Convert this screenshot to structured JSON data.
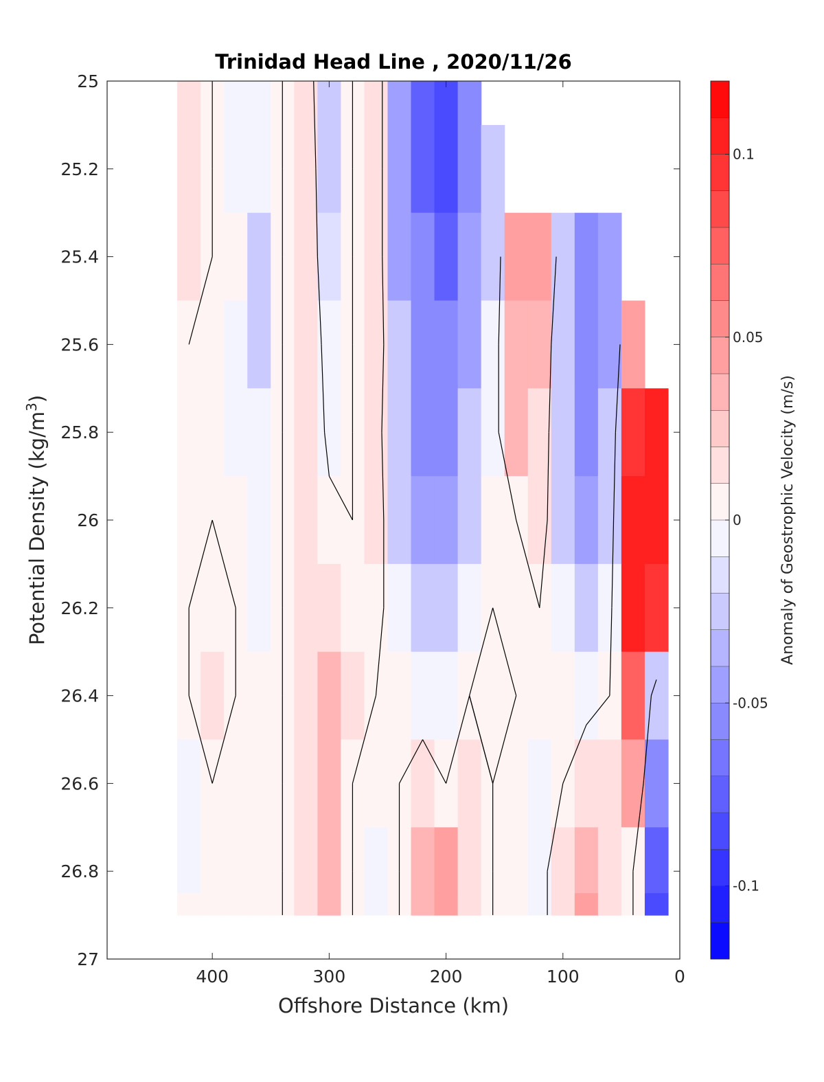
{
  "chart_data": {
    "type": "heatmap",
    "title": "Trinidad Head Line , 2020/11/26",
    "xlabel": "Offshore Distance (km)",
    "ylabel_main": "Potential Density (kg/m",
    "ylabel_sup": "3",
    "ylabel_close": ")",
    "colorbar_label": "Anomaly of Geostrophic Velocity (m/s)",
    "xlim": [
      490,
      0
    ],
    "ylim": [
      25,
      27
    ],
    "x_reversed": true,
    "y_reversed": true,
    "x_ticks": [
      400,
      300,
      200,
      100,
      0
    ],
    "x_tick_labels": [
      "400",
      "300",
      "200",
      "100",
      "0"
    ],
    "y_ticks": [
      25,
      25.2,
      25.4,
      25.6,
      25.8,
      26,
      26.2,
      26.4,
      26.6,
      26.8,
      27
    ],
    "y_tick_labels": [
      "25",
      "25.2",
      "25.4",
      "25.6",
      "25.8",
      "26",
      "26.2",
      "26.4",
      "26.6",
      "26.8",
      "27"
    ],
    "clim": [
      -0.12,
      0.12
    ],
    "colorbar_ticks": [
      0.1,
      0.05,
      0,
      -0.05,
      -0.1
    ],
    "colorbar_tick_labels": [
      "0.1",
      "0.05",
      "0",
      "-0.05",
      "-0.1"
    ],
    "colorbar_levels": 24,
    "colormap": "blue-white-red",
    "colors": {
      "negative": "#0000ff",
      "zero": "#ffffff",
      "positive": "#ff0000",
      "contour": "#000000"
    },
    "contour_level": 0,
    "stations_km": [
      420,
      400,
      380,
      360,
      340,
      320,
      300,
      280,
      260,
      240,
      220,
      200,
      180,
      160,
      140,
      120,
      100,
      80,
      60,
      40,
      20
    ],
    "density_levels": [
      25.0,
      25.2,
      25.4,
      25.6,
      25.8,
      26.0,
      26.2,
      26.4,
      26.6,
      26.8,
      26.9
    ],
    "anomaly_ms": [
      [
        0.01,
        0.0,
        -0.01,
        -0.005,
        0.0,
        0.015,
        -0.03,
        0.0,
        0.015,
        -0.04,
        -0.07,
        -0.09,
        -0.05,
        null,
        null,
        null,
        null,
        null,
        null,
        null,
        null
      ],
      [
        0.01,
        0.0,
        -0.005,
        -0.01,
        0.0,
        0.015,
        -0.02,
        0.0,
        0.015,
        -0.04,
        -0.07,
        -0.08,
        -0.05,
        -0.03,
        null,
        null,
        null,
        null,
        null,
        null,
        null
      ],
      [
        0.01,
        0.0,
        0.0,
        -0.02,
        0.0,
        0.015,
        -0.015,
        0.0,
        0.015,
        -0.04,
        -0.06,
        -0.07,
        -0.04,
        -0.02,
        0.04,
        0.05,
        -0.02,
        -0.05,
        -0.04,
        null,
        null
      ],
      [
        0.0,
        0.0,
        -0.01,
        -0.02,
        0.0,
        0.02,
        -0.01,
        0.0,
        0.015,
        -0.03,
        -0.05,
        -0.06,
        -0.04,
        -0.01,
        0.03,
        0.03,
        -0.03,
        -0.06,
        -0.04,
        0.05,
        null
      ],
      [
        0.0,
        0.0,
        -0.01,
        -0.01,
        0.0,
        0.02,
        -0.005,
        0.0,
        0.01,
        -0.03,
        -0.05,
        -0.05,
        -0.03,
        -0.01,
        0.03,
        0.02,
        -0.03,
        -0.05,
        -0.03,
        0.09,
        0.11
      ],
      [
        0.0,
        0.0,
        0.0,
        -0.01,
        0.0,
        0.02,
        0.005,
        0.0,
        0.01,
        -0.02,
        -0.04,
        -0.04,
        -0.02,
        0.0,
        0.0,
        0.01,
        -0.02,
        -0.04,
        -0.02,
        0.1,
        0.1
      ],
      [
        0.0,
        0.005,
        0.0,
        -0.01,
        0.0,
        0.02,
        0.02,
        0.005,
        0.005,
        -0.01,
        -0.02,
        -0.02,
        -0.01,
        0.0,
        0.0,
        0.0,
        -0.01,
        -0.02,
        -0.01,
        0.1,
        0.09
      ],
      [
        0.0,
        0.01,
        0.0,
        0.0,
        0.0,
        0.02,
        0.03,
        0.01,
        0.0,
        0.0,
        -0.01,
        -0.01,
        0.0,
        0.005,
        0.0,
        0.0,
        0.0,
        -0.01,
        0.0,
        0.07,
        -0.02
      ],
      [
        -0.005,
        0.0,
        0.0,
        0.0,
        0.0,
        0.02,
        0.03,
        0.0,
        0.0,
        0.0,
        0.01,
        0.0,
        0.02,
        0.0,
        0.0,
        -0.005,
        0.0,
        0.02,
        0.01,
        0.04,
        -0.05
      ],
      [
        -0.005,
        0.0,
        0.0,
        0.0,
        0.0,
        0.02,
        0.035,
        0.0,
        -0.005,
        0.0,
        0.03,
        0.04,
        0.02,
        0.0,
        0.0,
        -0.01,
        0.02,
        0.03,
        0.01,
        0.0,
        -0.07
      ],
      [
        0.0,
        0.0,
        0.0,
        0.0,
        0.0,
        0.02,
        0.03,
        0.0,
        -0.01,
        0.0,
        0.03,
        0.04,
        0.02,
        0.0,
        0.0,
        -0.01,
        0.02,
        0.04,
        0.02,
        0.0,
        -0.08
      ]
    ]
  }
}
